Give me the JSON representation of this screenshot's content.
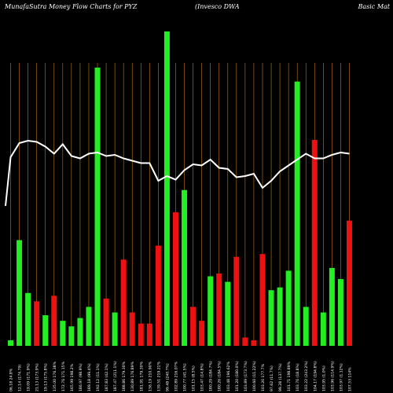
{
  "header": {
    "left": "MunafaSutra  Money Flow  Charts for PYZ",
    "middle": "(Invesco   DWA",
    "right": "Basic Mat"
  },
  "colors": {
    "background": "#000000",
    "green": "#22ee22",
    "red": "#ee1111",
    "line": "#ffffff",
    "grid": "#c07a10"
  },
  "chart_data": {
    "type": "bar",
    "bars": [
      {
        "color": "green",
        "value": 2
      },
      {
        "color": "green",
        "value": 38
      },
      {
        "color": "green",
        "value": 19
      },
      {
        "color": "red",
        "value": 16
      },
      {
        "color": "green",
        "value": 11
      },
      {
        "color": "red",
        "value": 18
      },
      {
        "color": "green",
        "value": 9
      },
      {
        "color": "green",
        "value": 7
      },
      {
        "color": "green",
        "value": 10
      },
      {
        "color": "green",
        "value": 14
      },
      {
        "color": "green",
        "value": 100
      },
      {
        "color": "red",
        "value": 17
      },
      {
        "color": "green",
        "value": 12
      },
      {
        "color": "red",
        "value": 31
      },
      {
        "color": "red",
        "value": 12
      },
      {
        "color": "red",
        "value": 8
      },
      {
        "color": "red",
        "value": 8
      },
      {
        "color": "red",
        "value": 36
      },
      {
        "color": "green",
        "value": 113
      },
      {
        "color": "red",
        "value": 48
      },
      {
        "color": "green",
        "value": 56
      },
      {
        "color": "red",
        "value": 14
      },
      {
        "color": "red",
        "value": 9
      },
      {
        "color": "green",
        "value": 25
      },
      {
        "color": "red",
        "value": 26
      },
      {
        "color": "green",
        "value": 23
      },
      {
        "color": "red",
        "value": 32
      },
      {
        "color": "red",
        "value": 3
      },
      {
        "color": "red",
        "value": 2
      },
      {
        "color": "red",
        "value": 33
      },
      {
        "color": "green",
        "value": 20
      },
      {
        "color": "green",
        "value": 21
      },
      {
        "color": "green",
        "value": 27
      },
      {
        "color": "green",
        "value": 95
      },
      {
        "color": "green",
        "value": 14
      },
      {
        "color": "red",
        "value": 74
      },
      {
        "color": "green",
        "value": 12
      },
      {
        "color": "green",
        "value": 28
      },
      {
        "color": "green",
        "value": 24
      },
      {
        "color": "red",
        "value": 45
      }
    ],
    "price_line": [
      80,
      86,
      87,
      86.5,
      84.5,
      81.5,
      85.5,
      80.5,
      79.5,
      81.5,
      82,
      80.5,
      81,
      79.5,
      78.5,
      77.5,
      77.5,
      70,
      72,
      70.5,
      74.5,
      77,
      76.5,
      79,
      75.5,
      75,
      71.5,
      72,
      73,
      67,
      70,
      74,
      76.5,
      79,
      81.5,
      79.5,
      79.5,
      81,
      82,
      81.5
    ],
    "x_labels": [
      "06.18 24.8%",
      "12.14 (174.79)",
      "19.09 (171.9%)",
      "21.13 (173.9%)",
      "19.13 (175.8%)",
      "135.00 176.38%",
      "172.76 171.15%",
      "165.99 198.2%",
      "186.97 (98.9%)",
      "189.18 (99.4%)",
      "192.12 (11.1%)",
      "187.83 (42.1%)",
      "187.47 (211.1%)",
      "188.86 179.30%",
      "130.89 176.89%",
      "181.91 179.30%",
      "136.19 210.90%",
      "139.51 219.21%",
      "99.48 (240.7%)",
      "102.89 216.07%",
      "100.77 (41.5%)",
      "101.15 (8.5%)",
      "103.47 (14.8%)",
      "180.29 (184.7%)",
      "180.26 (184.5%)",
      "103.48 196.62%",
      "101.20 (180.0%)",
      "103.89 (173.7%)",
      "100.60 (11.22%)",
      "103.26 177.7%",
      "97.62 (11.7%)",
      "99.28 (137.7%)",
      "101.71 198.89%",
      "103.76 (18.8%)",
      "103.22 (243.2%)",
      "104.17 (194.8%)",
      "103.95 (1.0%)",
      "103.96 (114.9%)",
      "103.97 (1.12%)",
      "107.53 114%"
    ]
  }
}
